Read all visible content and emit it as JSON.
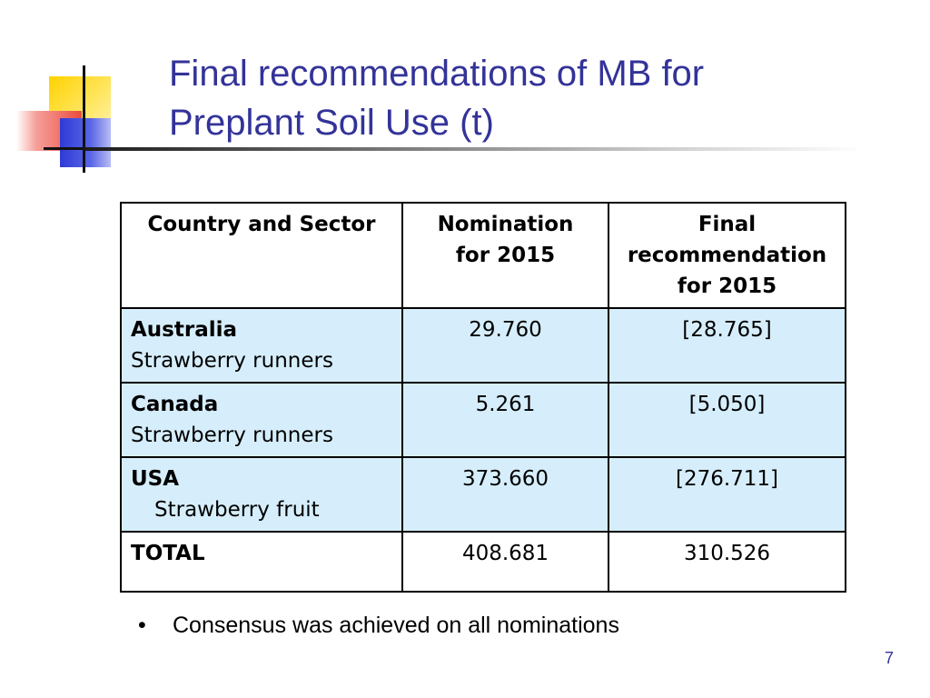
{
  "slide": {
    "title_lines": [
      "Final recommendations of MB for",
      "Preplant Soil Use (t)"
    ],
    "page_number": "7",
    "bullet": "Consensus was achieved on all nominations"
  },
  "table": {
    "headers": [
      "Country and Sector",
      "Nomination\nfor 2015",
      "Final\nrecommendation\nfor 2015"
    ],
    "rows": [
      {
        "country": "Australia",
        "sector": "Strawberry runners",
        "nomination": "29.760",
        "final": "[28.765]"
      },
      {
        "country": "Canada",
        "sector": "Strawberry runners",
        "nomination": "5.261",
        "final": "[5.050]"
      },
      {
        "country": "USA",
        "sector": "Strawberry fruit",
        "nomination": "373.660",
        "final": "[276.711]"
      }
    ],
    "total": {
      "label": "TOTAL",
      "nomination": "408.681",
      "final": "310.526"
    }
  },
  "colors": {
    "title": "#333399",
    "row_fill": "#d6eefb",
    "page_number": "#333399"
  }
}
